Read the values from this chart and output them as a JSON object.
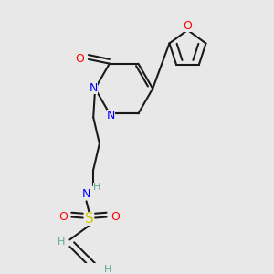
{
  "background_color": "#e8e8e8",
  "bond_color": "#1a1a1a",
  "bond_width": 1.5,
  "dbo": 0.012,
  "fig_width": 3.0,
  "fig_height": 3.0,
  "dpi": 100,
  "colors": {
    "N": "#0000ff",
    "O": "#ff0000",
    "S": "#cccc00",
    "NH": "#5aaa8a",
    "H": "#5aaa8a",
    "C": "#1a1a1a"
  }
}
